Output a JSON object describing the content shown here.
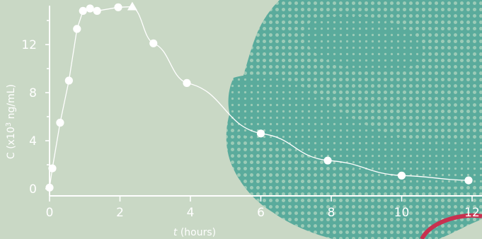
{
  "chart_data": {
    "type": "line",
    "title": "",
    "xlabel_italic": "t",
    "xlabel_rest": " (hours)",
    "ylabel_main": "C (x10",
    "ylabel_sup": "3",
    "ylabel_rest": " ng/mL)",
    "xlim": [
      0,
      12
    ],
    "ylim": [
      0,
      15
    ],
    "x_ticks": [
      0,
      2,
      4,
      6,
      8,
      10,
      12
    ],
    "y_ticks": [
      0,
      4,
      8,
      12
    ],
    "grid": false,
    "legend": "none",
    "colors": {
      "background": "#c9d8c5",
      "halftone": "#5aab9c",
      "halftone_dots": "#9ccbb7",
      "line": "#ffffff",
      "accent_ring": "#c8314f"
    },
    "series": [
      {
        "marker": "circle",
        "x": [
          0,
          0.08,
          0.3,
          0.55,
          0.78,
          0.95,
          1.15,
          1.35,
          1.95
        ],
        "y": [
          0.1,
          1.7,
          5.5,
          9.0,
          13.3,
          14.8,
          15.0,
          14.8,
          15.1
        ]
      },
      {
        "marker": "triangle",
        "x": [
          2.35
        ],
        "y": [
          15.15
        ]
      },
      {
        "marker": "circle",
        "x": [
          2.95,
          3.9,
          6.0,
          7.9,
          10.0,
          11.9
        ],
        "y": [
          12.1,
          8.8,
          4.6,
          2.35,
          1.1,
          0.7
        ]
      }
    ]
  }
}
